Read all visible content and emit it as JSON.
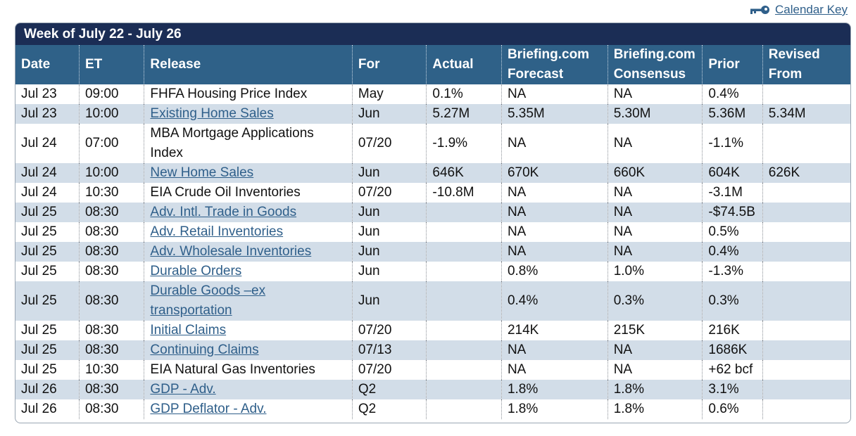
{
  "calendar_key": {
    "label": "Calendar Key"
  },
  "week_title": "Week of July 22 - July 26",
  "columns": [
    "Date",
    "ET",
    "Release",
    "For",
    "Actual",
    "Briefing.com Forecast",
    "Briefing.com Consensus",
    "Prior",
    "Revised From"
  ],
  "rows": [
    {
      "date": "Jul 23",
      "et": "09:00",
      "release": "FHFA Housing Price Index",
      "link": false,
      "for": "May",
      "actual": "0.1%",
      "forecast": "NA",
      "consensus": "NA",
      "prior": "0.4%",
      "revised": ""
    },
    {
      "date": "Jul 23",
      "et": "10:00",
      "release": "Existing Home Sales",
      "link": true,
      "for": "Jun",
      "actual": "5.27M",
      "forecast": "5.35M",
      "consensus": "5.30M",
      "prior": "5.36M",
      "revised": "5.34M"
    },
    {
      "date": "Jul 24",
      "et": "07:00",
      "release": "MBA Mortgage Applications Index",
      "link": false,
      "for": "07/20",
      "actual": "-1.9%",
      "forecast": "NA",
      "consensus": "NA",
      "prior": "-1.1%",
      "revised": ""
    },
    {
      "date": "Jul 24",
      "et": "10:00",
      "release": "New Home Sales",
      "link": true,
      "for": "Jun",
      "actual": "646K",
      "forecast": "670K",
      "consensus": "660K",
      "prior": "604K",
      "revised": "626K"
    },
    {
      "date": "Jul 24",
      "et": "10:30",
      "release": "EIA Crude Oil Inventories",
      "link": false,
      "for": "07/20",
      "actual": "-10.8M",
      "forecast": "NA",
      "consensus": "NA",
      "prior": "-3.1M",
      "revised": ""
    },
    {
      "date": "Jul 25",
      "et": "08:30",
      "release": "Adv. Intl. Trade in Goods",
      "link": true,
      "for": "Jun",
      "actual": "",
      "forecast": "NA",
      "consensus": "NA",
      "prior": "-$74.5B",
      "revised": ""
    },
    {
      "date": "Jul 25",
      "et": "08:30",
      "release": "Adv. Retail Inventories",
      "link": true,
      "for": "Jun",
      "actual": "",
      "forecast": "NA",
      "consensus": "NA",
      "prior": "0.5%",
      "revised": ""
    },
    {
      "date": "Jul 25",
      "et": "08:30",
      "release": "Adv. Wholesale Inventories",
      "link": true,
      "for": "Jun",
      "actual": "",
      "forecast": "NA",
      "consensus": "NA",
      "prior": "0.4%",
      "revised": ""
    },
    {
      "date": "Jul 25",
      "et": "08:30",
      "release": "Durable Orders",
      "link": true,
      "for": "Jun",
      "actual": "",
      "forecast": "0.8%",
      "consensus": "1.0%",
      "prior": "-1.3%",
      "revised": ""
    },
    {
      "date": "Jul 25",
      "et": "08:30",
      "release": "Durable Goods –ex transportation",
      "link": true,
      "for": "Jun",
      "actual": "",
      "forecast": "0.4%",
      "consensus": "0.3%",
      "prior": "0.3%",
      "revised": ""
    },
    {
      "date": "Jul 25",
      "et": "08:30",
      "release": "Initial Claims",
      "link": true,
      "for": "07/20",
      "actual": "",
      "forecast": "214K",
      "consensus": "215K",
      "prior": "216K",
      "revised": ""
    },
    {
      "date": "Jul 25",
      "et": "08:30",
      "release": "Continuing Claims",
      "link": true,
      "for": "07/13",
      "actual": "",
      "forecast": "NA",
      "consensus": "NA",
      "prior": "1686K",
      "revised": ""
    },
    {
      "date": "Jul 25",
      "et": "10:30",
      "release": "EIA Natural Gas Inventories",
      "link": false,
      "for": "07/20",
      "actual": "",
      "forecast": "NA",
      "consensus": "NA",
      "prior": "+62 bcf",
      "revised": ""
    },
    {
      "date": "Jul 26",
      "et": "08:30",
      "release": "GDP - Adv.",
      "link": true,
      "for": "Q2",
      "actual": "",
      "forecast": "1.8%",
      "consensus": "1.8%",
      "prior": "3.1%",
      "revised": ""
    },
    {
      "date": "Jul 26",
      "et": "08:30",
      "release": "GDP Deflator - Adv.",
      "link": true,
      "for": "Q2",
      "actual": "",
      "forecast": "1.8%",
      "consensus": "1.8%",
      "prior": "0.6%",
      "revised": ""
    }
  ],
  "colors": {
    "title_bar": "#1b2d55",
    "header": "#2f6188",
    "alt_row": "#d2dde8",
    "link": "#2f5f8a"
  },
  "icons": {
    "calendar_key": "key-icon"
  }
}
